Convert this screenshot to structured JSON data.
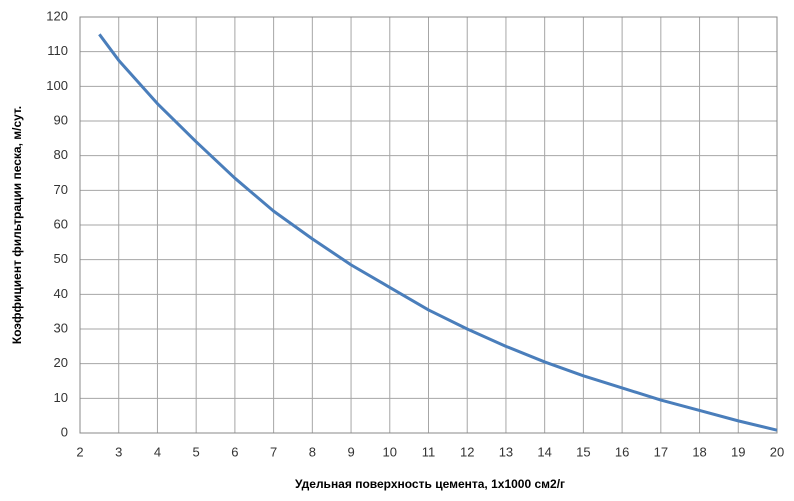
{
  "chart_data": {
    "type": "line",
    "x_label": "Удельная поверхность цемента, 1х1000 см2/г",
    "y_label": "Коэффициент фильтрации песка, м/сут.",
    "x": [
      2.5,
      3,
      4,
      5,
      6,
      7,
      8,
      9,
      10,
      11,
      12,
      13,
      14,
      15,
      16,
      17,
      18,
      19,
      20
    ],
    "series": [
      {
        "color": "#4a7ebb",
        "values": [
          115,
          107.5,
          95,
          84,
          73.5,
          64,
          56,
          48.5,
          42,
          35.5,
          30,
          25,
          20.5,
          16.5,
          13,
          9.5,
          6.5,
          3.5,
          0.8
        ]
      }
    ],
    "xlim": [
      2,
      20
    ],
    "xticks": [
      2,
      3,
      4,
      5,
      6,
      7,
      8,
      9,
      10,
      11,
      12,
      13,
      14,
      15,
      16,
      17,
      18,
      19,
      20
    ],
    "ylim": [
      0,
      120
    ],
    "yticks": [
      0,
      10,
      20,
      30,
      40,
      50,
      60,
      70,
      80,
      90,
      100,
      110,
      120
    ],
    "grid": true
  }
}
